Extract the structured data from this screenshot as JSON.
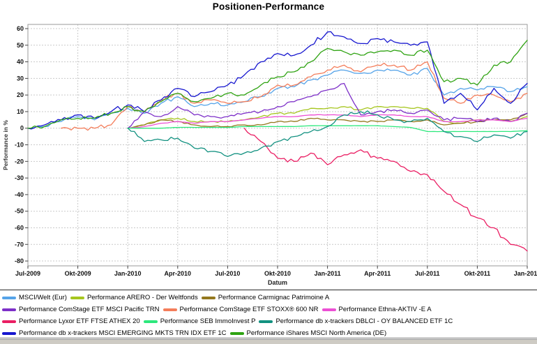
{
  "title": "Positionen-Performance",
  "chart_data": {
    "type": "line",
    "title": "Positionen-Performance",
    "xlabel": "Datum",
    "ylabel": "Performance in %",
    "ylim": [
      -80,
      60
    ],
    "ytick_step": 10,
    "y_ticks": [
      60,
      50,
      40,
      30,
      20,
      10,
      0,
      -10,
      -20,
      -30,
      -40,
      -50,
      -60,
      -70,
      -80
    ],
    "x_ticks": [
      "Jul-2009",
      "Okt-2009",
      "Jan-2010",
      "Apr-2010",
      "Jul-2010",
      "Okt-2010",
      "Jan-2011",
      "Apr-2011",
      "Jul-2011",
      "Okt-2011",
      "Jan-2012"
    ],
    "months": [
      "Jul-2009",
      "Aug-2009",
      "Sep-2009",
      "Okt-2009",
      "Nov-2009",
      "Dez-2009",
      "Jan-2010",
      "Feb-2010",
      "Mär-2010",
      "Apr-2010",
      "Mai-2010",
      "Jun-2010",
      "Jul-2010",
      "Aug-2010",
      "Sep-2010",
      "Okt-2010",
      "Nov-2010",
      "Dez-2010",
      "Jan-2011",
      "Feb-2011",
      "Mär-2011",
      "Apr-2011",
      "Mai-2011",
      "Jun-2011",
      "Jul-2011",
      "Aug-2011",
      "Sep-2011",
      "Okt-2011",
      "Nov-2011",
      "Dez-2011",
      "Jan-2012"
    ],
    "grid": "dotted",
    "legend_position": "bottom",
    "series": [
      {
        "name": "MSCI/Welt (Eur)",
        "color": "#55a3e8",
        "noise": 1.2,
        "values": [
          0,
          1,
          4,
          7,
          5,
          9,
          12,
          9,
          15,
          19,
          13,
          15,
          14,
          16,
          19,
          24,
          25,
          29,
          32,
          35,
          33,
          35,
          35,
          32,
          36,
          20,
          24,
          23,
          25,
          22,
          25
        ]
      },
      {
        "name": "Performance ARERO - Der Weltfonds",
        "color": "#a6c61e",
        "noise": 0.7,
        "values": [
          null,
          null,
          null,
          null,
          null,
          null,
          0,
          2,
          5,
          6,
          4,
          4,
          4,
          5,
          7,
          9,
          9,
          12,
          12,
          13,
          11,
          13,
          13,
          12,
          12,
          4,
          3,
          5,
          5,
          4,
          7
        ]
      },
      {
        "name": "Performance Carmignac Patrimoine A",
        "color": "#94781e",
        "noise": 0.6,
        "values": [
          null,
          null,
          null,
          null,
          null,
          null,
          0,
          2,
          5,
          4,
          2,
          1,
          1,
          2,
          2,
          4,
          4,
          6,
          5,
          5,
          4,
          4,
          5,
          4,
          5,
          2,
          3,
          4,
          5,
          5,
          9
        ]
      },
      {
        "name": "Performance ComStage ETF MSCI Pacific TRN",
        "color": "#7d2fc8",
        "noise": 1.2,
        "values": [
          null,
          null,
          null,
          null,
          null,
          null,
          0,
          10,
          7,
          13,
          8,
          7,
          7,
          9,
          10,
          13,
          16,
          19,
          23,
          27,
          8,
          10,
          11,
          9,
          11,
          5,
          6,
          4,
          6,
          4,
          9
        ]
      },
      {
        "name": "Performance ComStage ETF STOXX® 600 NR",
        "color": "#f47d5a",
        "noise": 1.3,
        "values": [
          null,
          null,
          0,
          0,
          0,
          2,
          13,
          10,
          17,
          21,
          15,
          17,
          15,
          16,
          19,
          26,
          26,
          31,
          35,
          38,
          34,
          38,
          38,
          35,
          40,
          18,
          15,
          20,
          20,
          16,
          21
        ]
      },
      {
        "name": "Performance Ethna-AKTIV -E A",
        "color": "#ec4fd4",
        "noise": 0.2,
        "values": [
          null,
          null,
          null,
          null,
          null,
          null,
          0,
          1,
          3,
          4,
          3,
          4,
          4,
          5,
          6,
          7,
          7,
          8,
          8,
          8,
          7,
          8,
          8,
          7,
          7,
          4,
          4,
          5,
          5,
          4,
          6
        ]
      },
      {
        "name": "Performance Lyxor ETF FTSE ATHEX 20",
        "color": "#ea1e63",
        "noise": 1.8,
        "values": [
          null,
          null,
          null,
          null,
          null,
          null,
          null,
          null,
          null,
          null,
          null,
          null,
          null,
          0,
          -8,
          -18,
          -20,
          -15,
          -22,
          -16,
          -13,
          -18,
          -20,
          -26,
          -28,
          -38,
          -46,
          -54,
          -60,
          -70,
          -74
        ]
      },
      {
        "name": "Performance SEB ImmoInvest P",
        "color": "#2de87c",
        "noise": 0.05,
        "values": [
          null,
          null,
          null,
          null,
          null,
          null,
          0,
          0,
          0,
          0.5,
          0.5,
          0.5,
          0.5,
          1,
          1,
          1,
          1,
          1.5,
          1.5,
          1.5,
          1.5,
          1.5,
          1,
          0.5,
          -2,
          -2,
          -2,
          -2,
          -2,
          -2,
          -1.5
        ]
      },
      {
        "name": "Performance db x-trackers DBLCI - OY BALANCED ETF 1C",
        "color": "#129180",
        "noise": 1.3,
        "values": [
          null,
          null,
          null,
          null,
          null,
          null,
          0,
          -8,
          -7,
          -6,
          -12,
          -14,
          -17,
          -15,
          -12,
          -8,
          -5,
          -2,
          1,
          8,
          10,
          8,
          5,
          4,
          6,
          -2,
          -5,
          -8,
          -4,
          -6,
          -2
        ]
      },
      {
        "name": "Performance db x-trackers MSCI EMERGING MKTS TRN IDX ETF 1C",
        "color": "#1616cf",
        "noise": 1.6,
        "values": [
          0,
          2,
          5,
          8,
          6,
          10,
          14,
          10,
          17,
          24,
          19,
          22,
          26,
          32,
          40,
          45,
          44,
          50,
          58,
          55,
          51,
          54,
          52,
          50,
          52,
          15,
          21,
          11,
          24,
          15,
          27
        ]
      },
      {
        "name": "Performance iShares MSCI North America (DE)",
        "color": "#2fa312",
        "noise": 1.3,
        "values": [
          0,
          1,
          5,
          6,
          6,
          9,
          13,
          10,
          16,
          21,
          16,
          18,
          21,
          20,
          26,
          31,
          34,
          40,
          48,
          46,
          44,
          46,
          47,
          44,
          47,
          28,
          30,
          26,
          38,
          40,
          53
        ]
      }
    ],
    "legend_rows": [
      [
        0,
        1,
        2
      ],
      [
        3,
        4,
        5
      ],
      [
        6,
        7,
        8
      ],
      [
        9,
        10
      ]
    ]
  },
  "colors": {
    "plot_border": "#9a9a9a",
    "grid": "#c9c9c9",
    "tick_text": "#111111",
    "bottom_strip": "#cecbc4"
  }
}
